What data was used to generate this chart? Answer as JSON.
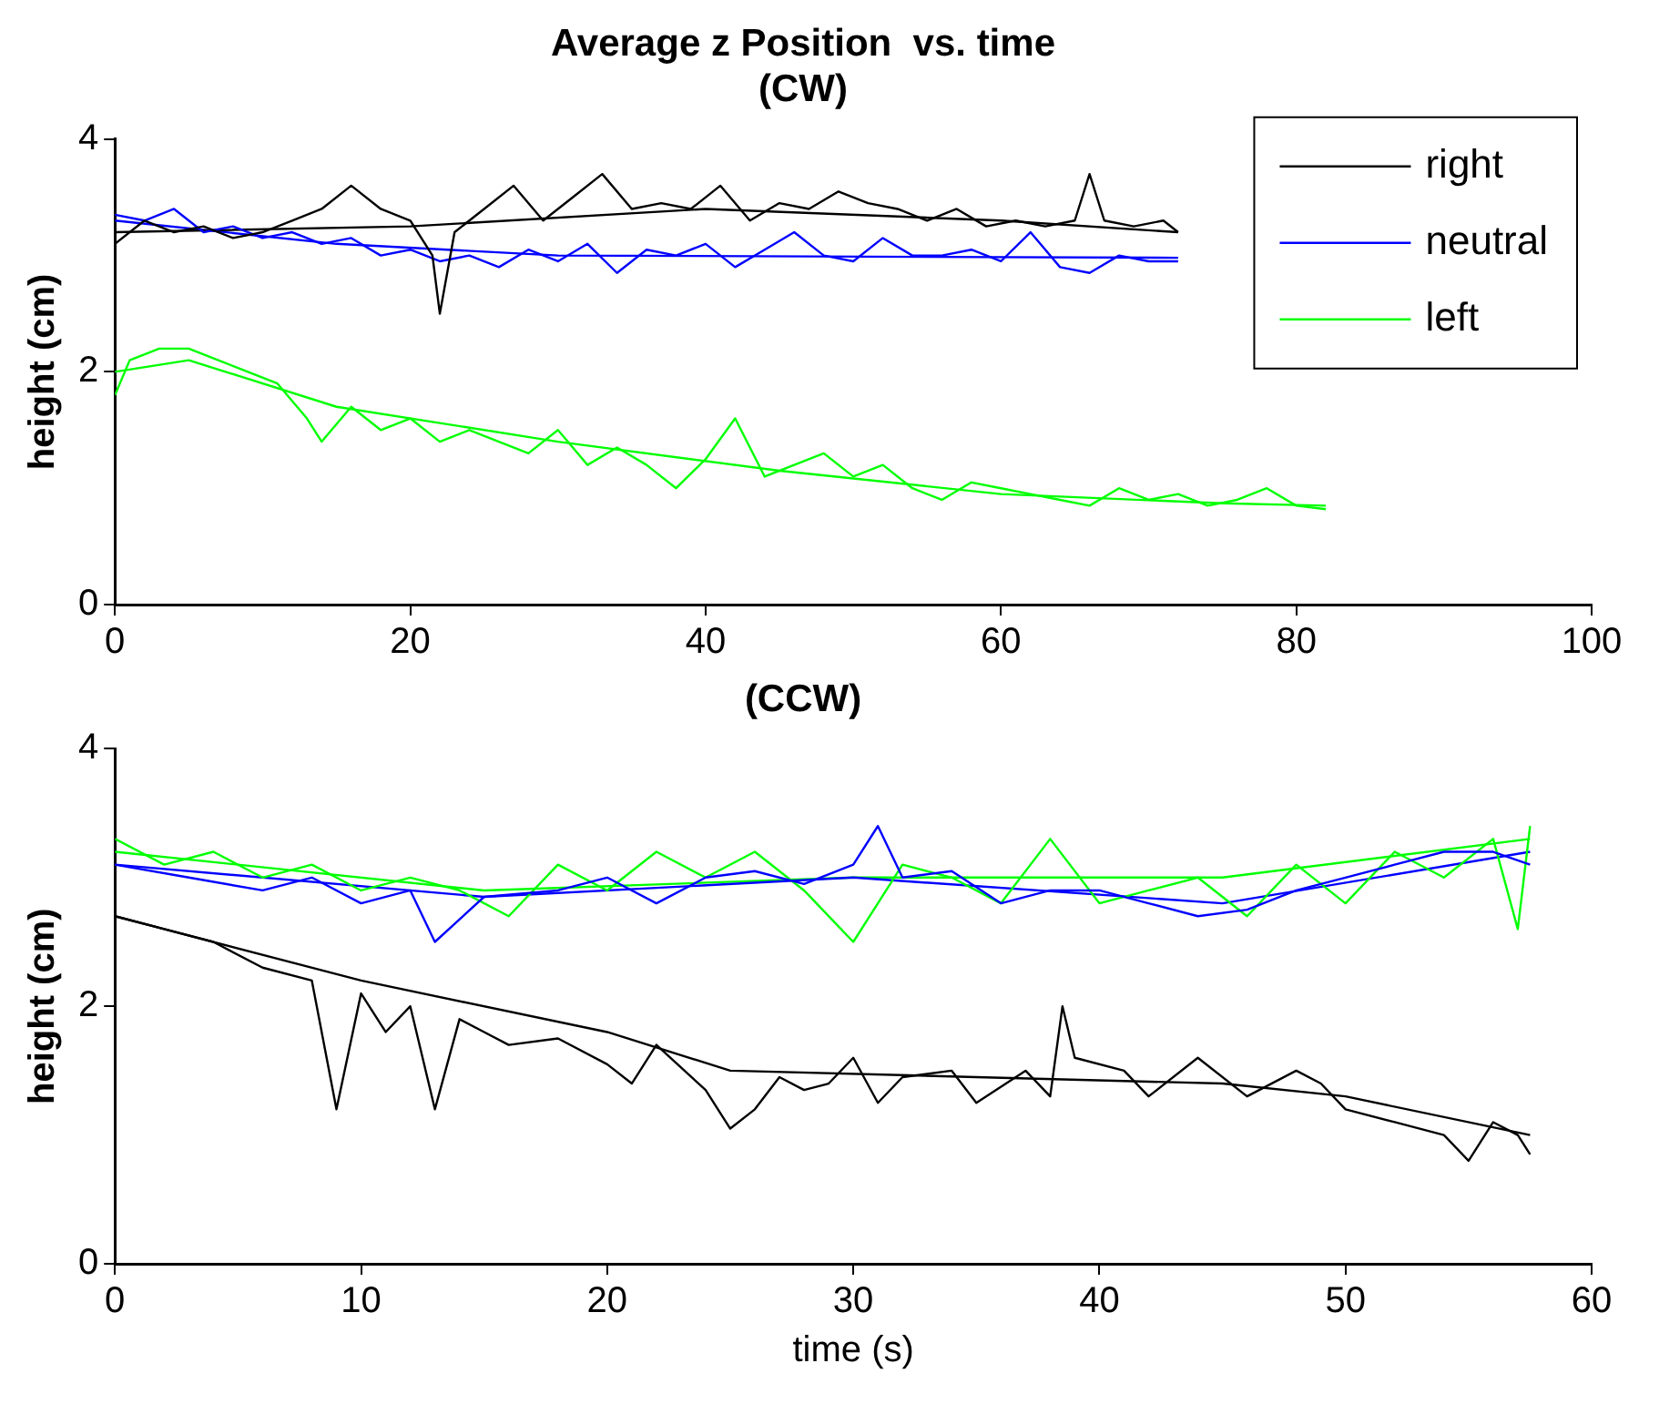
{
  "chart_data": [
    {
      "type": "line",
      "title": "Average z Position  vs. time",
      "subtitle": "(CW)",
      "ylabel": "height (cm)",
      "xlim": [
        0,
        100
      ],
      "xticks": [
        0,
        20,
        40,
        60,
        80,
        100
      ],
      "ylim": [
        0,
        4
      ],
      "yticks": [
        0,
        2,
        4
      ],
      "grid": false,
      "legend": "top right",
      "line_style": "solid",
      "marker": "none",
      "series": [
        {
          "name": "right",
          "color": "#000000",
          "x": [
            0,
            2,
            4,
            6,
            8,
            10,
            12,
            14,
            16,
            18,
            20,
            21.5,
            22,
            23,
            25,
            27,
            29,
            31,
            33,
            35,
            37,
            39,
            41,
            43,
            45,
            47,
            49,
            51,
            53,
            55,
            57,
            59,
            61,
            63,
            65,
            66,
            67,
            69,
            71,
            72
          ],
          "values": [
            3.1,
            3.3,
            3.2,
            3.25,
            3.15,
            3.2,
            3.3,
            3.4,
            3.6,
            3.4,
            3.3,
            3.0,
            2.5,
            3.2,
            3.4,
            3.6,
            3.3,
            3.5,
            3.7,
            3.4,
            3.45,
            3.4,
            3.6,
            3.3,
            3.45,
            3.4,
            3.55,
            3.45,
            3.4,
            3.3,
            3.4,
            3.25,
            3.3,
            3.25,
            3.3,
            3.7,
            3.3,
            3.25,
            3.3,
            3.2
          ]
        },
        {
          "name": "neutral",
          "color": "#0000ff",
          "x": [
            0,
            2,
            4,
            6,
            8,
            10,
            12,
            14,
            16,
            18,
            20,
            22,
            24,
            26,
            28,
            30,
            32,
            34,
            36,
            38,
            40,
            42,
            44,
            46,
            48,
            50,
            52,
            54,
            56,
            58,
            60,
            62,
            64,
            66,
            68,
            70,
            72
          ],
          "values": [
            3.35,
            3.3,
            3.4,
            3.2,
            3.25,
            3.15,
            3.2,
            3.1,
            3.15,
            3.0,
            3.05,
            2.95,
            3.0,
            2.9,
            3.05,
            2.95,
            3.1,
            2.85,
            3.05,
            3.0,
            3.1,
            2.9,
            3.05,
            3.2,
            3.0,
            2.95,
            3.15,
            3.0,
            3.0,
            3.05,
            2.95,
            3.2,
            2.9,
            2.85,
            3.0,
            2.95,
            2.95
          ]
        },
        {
          "name": "left",
          "color": "#00ff00",
          "x": [
            0,
            1,
            3,
            5,
            7,
            9,
            11,
            13,
            14,
            16,
            18,
            20,
            22,
            24,
            26,
            28,
            30,
            32,
            34,
            36,
            38,
            40,
            42,
            44,
            46,
            48,
            50,
            52,
            54,
            56,
            58,
            60,
            62,
            64,
            66,
            68,
            70,
            72,
            74,
            76,
            78,
            80,
            82
          ],
          "values": [
            1.8,
            2.1,
            2.2,
            2.2,
            2.1,
            2.0,
            1.9,
            1.6,
            1.4,
            1.7,
            1.5,
            1.6,
            1.4,
            1.5,
            1.4,
            1.3,
            1.5,
            1.2,
            1.35,
            1.2,
            1.0,
            1.25,
            1.6,
            1.1,
            1.2,
            1.3,
            1.1,
            1.2,
            1.0,
            0.9,
            1.05,
            1.0,
            0.95,
            0.9,
            0.85,
            1.0,
            0.9,
            0.95,
            0.85,
            0.9,
            1.0,
            0.85,
            0.82
          ]
        },
        {
          "type": "line",
          "color": "#000000",
          "x": [
            0,
            20,
            40,
            60,
            72
          ],
          "values": [
            3.2,
            3.25,
            3.4,
            3.3,
            3.2
          ]
        },
        {
          "type": "line",
          "color": "#0000ff",
          "x": [
            0,
            15,
            30,
            72
          ],
          "values": [
            3.3,
            3.1,
            3.0,
            2.98
          ]
        },
        {
          "type": "line",
          "color": "#00ff00",
          "x": [
            0,
            5,
            15,
            30,
            45,
            60,
            75,
            82
          ],
          "values": [
            2.0,
            2.1,
            1.7,
            1.4,
            1.15,
            0.95,
            0.87,
            0.85
          ]
        }
      ]
    },
    {
      "type": "line",
      "title": "(CCW)",
      "xlabel": "time (s)",
      "ylabel": "height (cm)",
      "xlim": [
        0,
        60
      ],
      "xticks": [
        0,
        10,
        20,
        30,
        40,
        50,
        60
      ],
      "ylim": [
        0,
        4
      ],
      "yticks": [
        0,
        2,
        4
      ],
      "grid": false,
      "legend": false,
      "line_style": "solid",
      "marker": "none",
      "series": [
        {
          "color": "#000000",
          "x": [
            0,
            2,
            4,
            6,
            8,
            9,
            10,
            11,
            12,
            13,
            14,
            15,
            16,
            18,
            20,
            21,
            22,
            24,
            25,
            26,
            27,
            28,
            29,
            30,
            31,
            32,
            34,
            35,
            37,
            38,
            38.5,
            39,
            41,
            42,
            44,
            46,
            48,
            49,
            50,
            52,
            54,
            55,
            56,
            57,
            57.5
          ],
          "values": [
            2.7,
            2.6,
            2.5,
            2.3,
            2.2,
            1.2,
            2.1,
            1.8,
            2.0,
            1.2,
            1.9,
            1.8,
            1.7,
            1.75,
            1.55,
            1.4,
            1.7,
            1.35,
            1.05,
            1.2,
            1.45,
            1.35,
            1.4,
            1.6,
            1.25,
            1.45,
            1.5,
            1.25,
            1.5,
            1.3,
            2.0,
            1.6,
            1.5,
            1.3,
            1.6,
            1.3,
            1.5,
            1.4,
            1.2,
            1.1,
            1.0,
            0.8,
            1.1,
            1.0,
            0.85
          ]
        },
        {
          "color": "#0000ff",
          "x": [
            0,
            3,
            6,
            8,
            10,
            12,
            13,
            15,
            18,
            20,
            22,
            24,
            26,
            28,
            30,
            31,
            32,
            34,
            36,
            38,
            40,
            42,
            44,
            46,
            48,
            50,
            52,
            54,
            56,
            57.5
          ],
          "values": [
            3.1,
            3.0,
            2.9,
            3.0,
            2.8,
            2.9,
            2.5,
            2.85,
            2.9,
            3.0,
            2.8,
            3.0,
            3.05,
            2.95,
            3.1,
            3.4,
            3.0,
            3.05,
            2.8,
            2.9,
            2.9,
            2.8,
            2.7,
            2.75,
            2.9,
            3.0,
            3.1,
            3.2,
            3.2,
            3.1
          ]
        },
        {
          "color": "#00ff00",
          "x": [
            0,
            2,
            4,
            6,
            8,
            10,
            12,
            14,
            16,
            18,
            20,
            22,
            24,
            26,
            28,
            30,
            32,
            34,
            36,
            38,
            40,
            42,
            44,
            46,
            48,
            50,
            52,
            54,
            56,
            57,
            57.5
          ],
          "values": [
            3.3,
            3.1,
            3.2,
            3.0,
            3.1,
            2.9,
            3.0,
            2.9,
            2.7,
            3.1,
            2.9,
            3.2,
            3.0,
            3.2,
            2.9,
            2.5,
            3.1,
            3.0,
            2.8,
            3.3,
            2.8,
            2.9,
            3.0,
            2.7,
            3.1,
            2.8,
            3.2,
            3.0,
            3.3,
            2.6,
            3.4
          ]
        },
        {
          "type": "line",
          "color": "#000000",
          "x": [
            0,
            10,
            20,
            25,
            35,
            45,
            50,
            57.5
          ],
          "values": [
            2.7,
            2.2,
            1.8,
            1.5,
            1.45,
            1.4,
            1.3,
            1.0
          ]
        },
        {
          "type": "line",
          "color": "#0000ff",
          "x": [
            0,
            15,
            30,
            45,
            57.5
          ],
          "values": [
            3.1,
            2.85,
            3.0,
            2.8,
            3.2
          ]
        },
        {
          "type": "line",
          "color": "#00ff00",
          "x": [
            0,
            15,
            30,
            45,
            57.5
          ],
          "values": [
            3.2,
            2.9,
            3.0,
            3.0,
            3.3
          ]
        }
      ]
    }
  ]
}
